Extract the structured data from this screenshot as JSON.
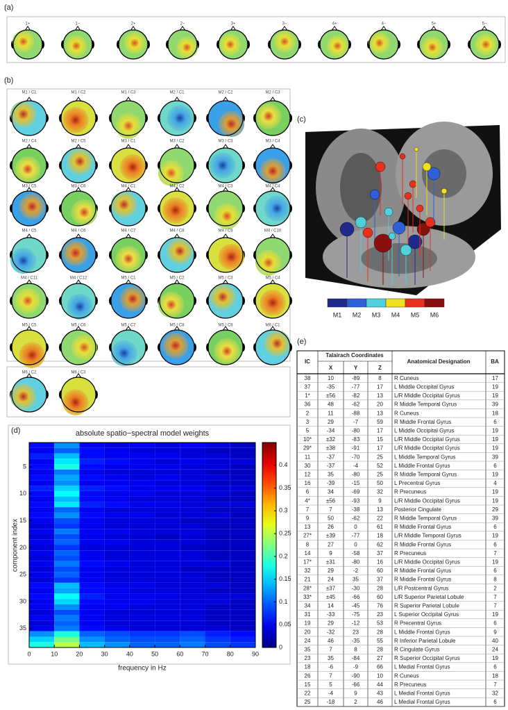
{
  "panel_a": {
    "label": "(a)",
    "heads": [
      "1+",
      "1−",
      "2+",
      "2−",
      "3+",
      "3−",
      "4+",
      "4−",
      "5+",
      "5−"
    ]
  },
  "panel_b": {
    "label": "(b)",
    "maps": [
      "M1 / C1",
      "M1 / C2",
      "M1 / C3",
      "M2 / C1",
      "M2 / C2",
      "M2 / C3",
      "M2 / C4",
      "M2 / C5",
      "M3 / C1",
      "M3 / C2",
      "M3 / C3",
      "M3 / C4",
      "M3 / C5",
      "M3 / C6",
      "M4 / C1",
      "M4 / C2",
      "M4 / C3",
      "M4 / C4",
      "M4 / C5",
      "M4 / C6",
      "M4 / C7",
      "M4 / C8",
      "M4 / C9",
      "M4 / C10",
      "M4 / C11",
      "M4 / C12",
      "M5 / C1",
      "M5 / C2",
      "M5 / C3",
      "M5 / C4",
      "M5 / C5",
      "M5 / C6",
      "M5 / C7",
      "M5 / C8",
      "M5 / C9",
      "M6 / C1",
      "M6 / C2",
      "M6 / C3"
    ]
  },
  "panel_c": {
    "label": "(c)",
    "modules": [
      "M1",
      "M2",
      "M3",
      "M4",
      "M5",
      "M6"
    ],
    "colors": [
      "#1f2a8c",
      "#2e5fd6",
      "#4fd0dc",
      "#f0e020",
      "#e8301c",
      "#8a1010"
    ]
  },
  "chart_data": {
    "type": "heatmap",
    "label": "(d)",
    "title": "absolute spatio−spectral model weights",
    "xlabel": "frequency in Hz",
    "ylabel": "component index",
    "xbins": [
      0,
      10,
      20,
      30,
      40,
      50,
      60,
      70,
      80,
      90
    ],
    "y": [
      1,
      2,
      3,
      4,
      5,
      6,
      7,
      8,
      9,
      10,
      11,
      12,
      13,
      14,
      15,
      16,
      17,
      18,
      19,
      20,
      21,
      22,
      23,
      24,
      25,
      26,
      27,
      28,
      29,
      30,
      31,
      32,
      33,
      34,
      35,
      36,
      37,
      38
    ],
    "xlim": [
      0,
      90
    ],
    "ylim": [
      0.5,
      38.5
    ],
    "xticks": [
      0,
      10,
      20,
      30,
      40,
      50,
      60,
      70,
      80,
      90
    ],
    "yticks": [
      5,
      10,
      15,
      20,
      25,
      30,
      35
    ],
    "clim": [
      0,
      0.45
    ],
    "cticks": [
      0,
      0.05,
      0.1,
      0.15,
      0.2,
      0.25,
      0.3,
      0.35,
      0.4
    ],
    "colormap": "jet",
    "z": [
      [
        0.06,
        0.12,
        0.05,
        0.04,
        0.05,
        0.04,
        0.05,
        0.04,
        0.03
      ],
      [
        0.05,
        0.1,
        0.06,
        0.05,
        0.04,
        0.04,
        0.04,
        0.03,
        0.03
      ],
      [
        0.07,
        0.14,
        0.06,
        0.05,
        0.05,
        0.05,
        0.04,
        0.04,
        0.03
      ],
      [
        0.05,
        0.16,
        0.07,
        0.06,
        0.05,
        0.04,
        0.05,
        0.04,
        0.04
      ],
      [
        0.06,
        0.18,
        0.06,
        0.05,
        0.05,
        0.05,
        0.04,
        0.04,
        0.03
      ],
      [
        0.05,
        0.11,
        0.05,
        0.04,
        0.04,
        0.04,
        0.04,
        0.03,
        0.03
      ],
      [
        0.06,
        0.13,
        0.06,
        0.05,
        0.04,
        0.05,
        0.04,
        0.04,
        0.03
      ],
      [
        0.05,
        0.12,
        0.05,
        0.05,
        0.05,
        0.04,
        0.04,
        0.03,
        0.03
      ],
      [
        0.07,
        0.15,
        0.07,
        0.06,
        0.05,
        0.05,
        0.05,
        0.04,
        0.04
      ],
      [
        0.06,
        0.17,
        0.06,
        0.05,
        0.05,
        0.04,
        0.04,
        0.04,
        0.03
      ],
      [
        0.05,
        0.14,
        0.06,
        0.05,
        0.04,
        0.04,
        0.04,
        0.03,
        0.03
      ],
      [
        0.06,
        0.16,
        0.07,
        0.06,
        0.05,
        0.05,
        0.04,
        0.04,
        0.04
      ],
      [
        0.05,
        0.1,
        0.05,
        0.04,
        0.04,
        0.04,
        0.04,
        0.03,
        0.03
      ],
      [
        0.06,
        0.12,
        0.06,
        0.05,
        0.05,
        0.04,
        0.04,
        0.04,
        0.03
      ],
      [
        0.05,
        0.09,
        0.05,
        0.04,
        0.04,
        0.04,
        0.03,
        0.03,
        0.03
      ],
      [
        0.04,
        0.08,
        0.05,
        0.04,
        0.04,
        0.04,
        0.04,
        0.03,
        0.03
      ],
      [
        0.05,
        0.11,
        0.05,
        0.05,
        0.04,
        0.04,
        0.04,
        0.03,
        0.03
      ],
      [
        0.04,
        0.09,
        0.05,
        0.04,
        0.04,
        0.03,
        0.04,
        0.03,
        0.03
      ],
      [
        0.05,
        0.1,
        0.05,
        0.05,
        0.04,
        0.04,
        0.04,
        0.03,
        0.03
      ],
      [
        0.04,
        0.08,
        0.04,
        0.04,
        0.04,
        0.04,
        0.03,
        0.03,
        0.03
      ],
      [
        0.05,
        0.1,
        0.05,
        0.04,
        0.04,
        0.04,
        0.04,
        0.03,
        0.03
      ],
      [
        0.04,
        0.09,
        0.05,
        0.04,
        0.04,
        0.04,
        0.04,
        0.03,
        0.03
      ],
      [
        0.05,
        0.11,
        0.06,
        0.05,
        0.04,
        0.04,
        0.04,
        0.04,
        0.03
      ],
      [
        0.04,
        0.09,
        0.05,
        0.04,
        0.04,
        0.04,
        0.03,
        0.03,
        0.03
      ],
      [
        0.05,
        0.1,
        0.05,
        0.04,
        0.04,
        0.04,
        0.04,
        0.03,
        0.03
      ],
      [
        0.04,
        0.08,
        0.05,
        0.04,
        0.04,
        0.04,
        0.04,
        0.03,
        0.03
      ],
      [
        0.06,
        0.14,
        0.06,
        0.05,
        0.05,
        0.04,
        0.04,
        0.04,
        0.03
      ],
      [
        0.05,
        0.13,
        0.06,
        0.05,
        0.04,
        0.04,
        0.04,
        0.03,
        0.03
      ],
      [
        0.06,
        0.17,
        0.07,
        0.05,
        0.05,
        0.05,
        0.04,
        0.04,
        0.04
      ],
      [
        0.05,
        0.15,
        0.06,
        0.05,
        0.05,
        0.04,
        0.04,
        0.04,
        0.03
      ],
      [
        0.05,
        0.12,
        0.05,
        0.05,
        0.04,
        0.04,
        0.04,
        0.03,
        0.03
      ],
      [
        0.04,
        0.09,
        0.05,
        0.04,
        0.04,
        0.04,
        0.04,
        0.03,
        0.03
      ],
      [
        0.05,
        0.11,
        0.05,
        0.04,
        0.04,
        0.04,
        0.04,
        0.03,
        0.03
      ],
      [
        0.04,
        0.1,
        0.05,
        0.04,
        0.04,
        0.04,
        0.04,
        0.03,
        0.03
      ],
      [
        0.05,
        0.11,
        0.06,
        0.05,
        0.04,
        0.04,
        0.04,
        0.04,
        0.03
      ],
      [
        0.12,
        0.18,
        0.1,
        0.09,
        0.08,
        0.08,
        0.09,
        0.07,
        0.06
      ],
      [
        0.15,
        0.22,
        0.12,
        0.1,
        0.09,
        0.09,
        0.1,
        0.08,
        0.07
      ],
      [
        0.18,
        0.25,
        0.14,
        0.12,
        0.1,
        0.1,
        0.11,
        0.09,
        0.08
      ]
    ]
  },
  "table": {
    "label": "(e)",
    "header": {
      "ic": "IC",
      "group": "Talairach Coordinates",
      "x": "X",
      "y": "Y",
      "z": "Z",
      "area": "Anatomical Designation",
      "ba": "BA"
    },
    "rows": [
      [
        "38",
        "10",
        "-89",
        "8",
        "R Cuneus",
        "17"
      ],
      [
        "37",
        "-35",
        "-77",
        "17",
        "L Middle Occipital Gyrus",
        "19"
      ],
      [
        "1*",
        "±56",
        "-82",
        "13",
        "L/R Middle Occipital Gyrus",
        "19"
      ],
      [
        "36",
        "48",
        "-62",
        "20",
        "R Middle Temporal Gyrus",
        "39"
      ],
      [
        "2",
        "11",
        "-88",
        "13",
        "R Cuneus",
        "18"
      ],
      [
        "3",
        "29",
        "-7",
        "59",
        "R Middle Frontal Gyrus",
        "6"
      ],
      [
        "5",
        "-34",
        "-80",
        "17",
        "L Middle Occipital Gyrus",
        "19"
      ],
      [
        "10*",
        "±32",
        "-83",
        "15",
        "L/R Middle Occipital Gyrus",
        "19"
      ],
      [
        "29*",
        "±38",
        "-91",
        "17",
        "L/R Middle Occipital Gyrus",
        "19"
      ],
      [
        "11",
        "-37",
        "-70",
        "25",
        "L Middle Temporal Gyrus",
        "39"
      ],
      [
        "30",
        "-37",
        "-4",
        "52",
        "L Middle Frontal Gyrus",
        "6"
      ],
      [
        "12",
        "35",
        "-80",
        "25",
        "R Middle Temporal Gyrus",
        "19"
      ],
      [
        "16",
        "-39",
        "-15",
        "50",
        "L Precentral Gyrus",
        "4"
      ],
      [
        "6",
        "34",
        "-69",
        "32",
        "R Precuneus",
        "19"
      ],
      [
        "4*",
        "±56",
        "-93",
        "9",
        "L/R Middle Occipital Gyrus",
        "19"
      ],
      [
        "7",
        "7",
        "-38",
        "13",
        "Posterior Cingulate",
        "29"
      ],
      [
        "9",
        "50",
        "-62",
        "22",
        "R Middle Temporal Gyrus",
        "39"
      ],
      [
        "13",
        "26",
        "0",
        "61",
        "R Middle Frontal Gyrus",
        "6"
      ],
      [
        "27*",
        "±39",
        "-77",
        "18",
        "L/R Middle Temporal Gyrus",
        "19"
      ],
      [
        "8",
        "27",
        "0",
        "62",
        "R Middle Frontal Gyrus",
        "6"
      ],
      [
        "14",
        "9",
        "-58",
        "37",
        "R Precuneus",
        "7"
      ],
      [
        "17*",
        "±31",
        "-80",
        "16",
        "L/R Middle Occipital Gyrus",
        "19"
      ],
      [
        "32",
        "29",
        "-2",
        "60",
        "R Middle Frontal Gyrus",
        "6"
      ],
      [
        "21",
        "24",
        "35",
        "37",
        "R Middle Frontal Gyrus",
        "8"
      ],
      [
        "28*",
        "±37",
        "-30",
        "28",
        "L/R Postcentral Gyrus",
        "2"
      ],
      [
        "33*",
        "±45",
        "-66",
        "60",
        "L/R Superior Parietal Lobule",
        "7"
      ],
      [
        "34",
        "14",
        "-45",
        "76",
        "R Superior Parietal Lobule",
        "7"
      ],
      [
        "31",
        "-33",
        "-75",
        "23",
        "L Superior Occipital Gyrus",
        "19"
      ],
      [
        "19",
        "29",
        "-12",
        "53",
        "R Precentral Gyrus",
        "6"
      ],
      [
        "20",
        "-32",
        "23",
        "28",
        "L Middle Frontal Gyrus",
        "9"
      ],
      [
        "24",
        "46",
        "-35",
        "55",
        "R Inferior Parietal Lobule",
        "40"
      ],
      [
        "35",
        "7",
        "8",
        "28",
        "R Cingulate Gyrus",
        "24"
      ],
      [
        "23",
        "35",
        "-84",
        "27",
        "R Superior Occipital Gyrus",
        "19"
      ],
      [
        "18",
        "-6",
        "-9",
        "66",
        "L Medial Frontal Gyrus",
        "6"
      ],
      [
        "26",
        "7",
        "-90",
        "10",
        "R Cuneus",
        "18"
      ],
      [
        "15",
        "5",
        "-66",
        "44",
        "R Precuneus",
        "7"
      ],
      [
        "22",
        "-4",
        "9",
        "43",
        "L Medial Frontal Gyrus",
        "32"
      ],
      [
        "25",
        "-18",
        "2",
        "46",
        "L Medial Frontal Gyrus",
        "6"
      ]
    ]
  }
}
